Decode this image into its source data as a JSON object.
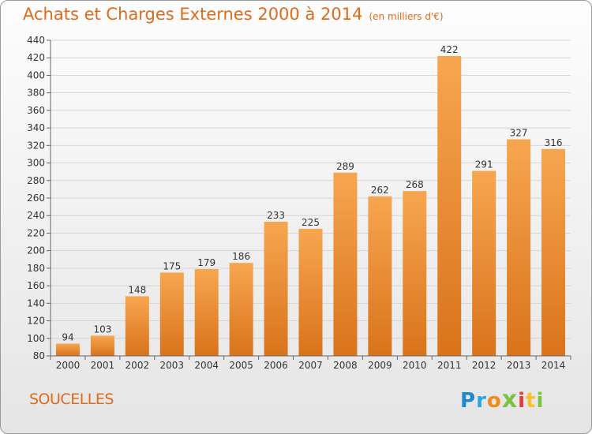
{
  "title": "Achats et Charges Externes 2000 à 2014",
  "subtitle": "(en milliers d'€)",
  "city": "SOUCELLES",
  "logo": {
    "text": "Proxiti",
    "letters": [
      {
        "ch": "P",
        "color": "#1e88d0"
      },
      {
        "ch": "r",
        "color": "#2aa5e0"
      },
      {
        "ch": "o",
        "color": "#f08a1c"
      },
      {
        "ch": "x",
        "color": "#7cc242"
      },
      {
        "ch": "i",
        "color": "#e23a3a"
      },
      {
        "ch": "t",
        "color": "#f6c12b"
      },
      {
        "ch": "i",
        "color": "#7cc242"
      }
    ]
  },
  "colors": {
    "bar_top": "#f7a650",
    "bar_bottom": "#d9731b",
    "accent": "#e06a1b",
    "grid": "#d6d6d6"
  },
  "chart_data": {
    "type": "bar",
    "title": "Achats et Charges Externes 2000 à 2014",
    "subtitle": "(en milliers d'€)",
    "categories": [
      "2000",
      "2001",
      "2002",
      "2003",
      "2004",
      "2005",
      "2006",
      "2007",
      "2008",
      "2009",
      "2010",
      "2011",
      "2012",
      "2013",
      "2014"
    ],
    "values": [
      94,
      103,
      148,
      175,
      179,
      186,
      233,
      225,
      289,
      262,
      268,
      422,
      291,
      327,
      316
    ],
    "ylim": [
      80,
      440
    ],
    "yticks": [
      80,
      100,
      120,
      140,
      160,
      180,
      200,
      220,
      240,
      260,
      280,
      300,
      320,
      340,
      360,
      380,
      400,
      420,
      440
    ],
    "xlabel": "",
    "ylabel": "",
    "grid": true
  }
}
